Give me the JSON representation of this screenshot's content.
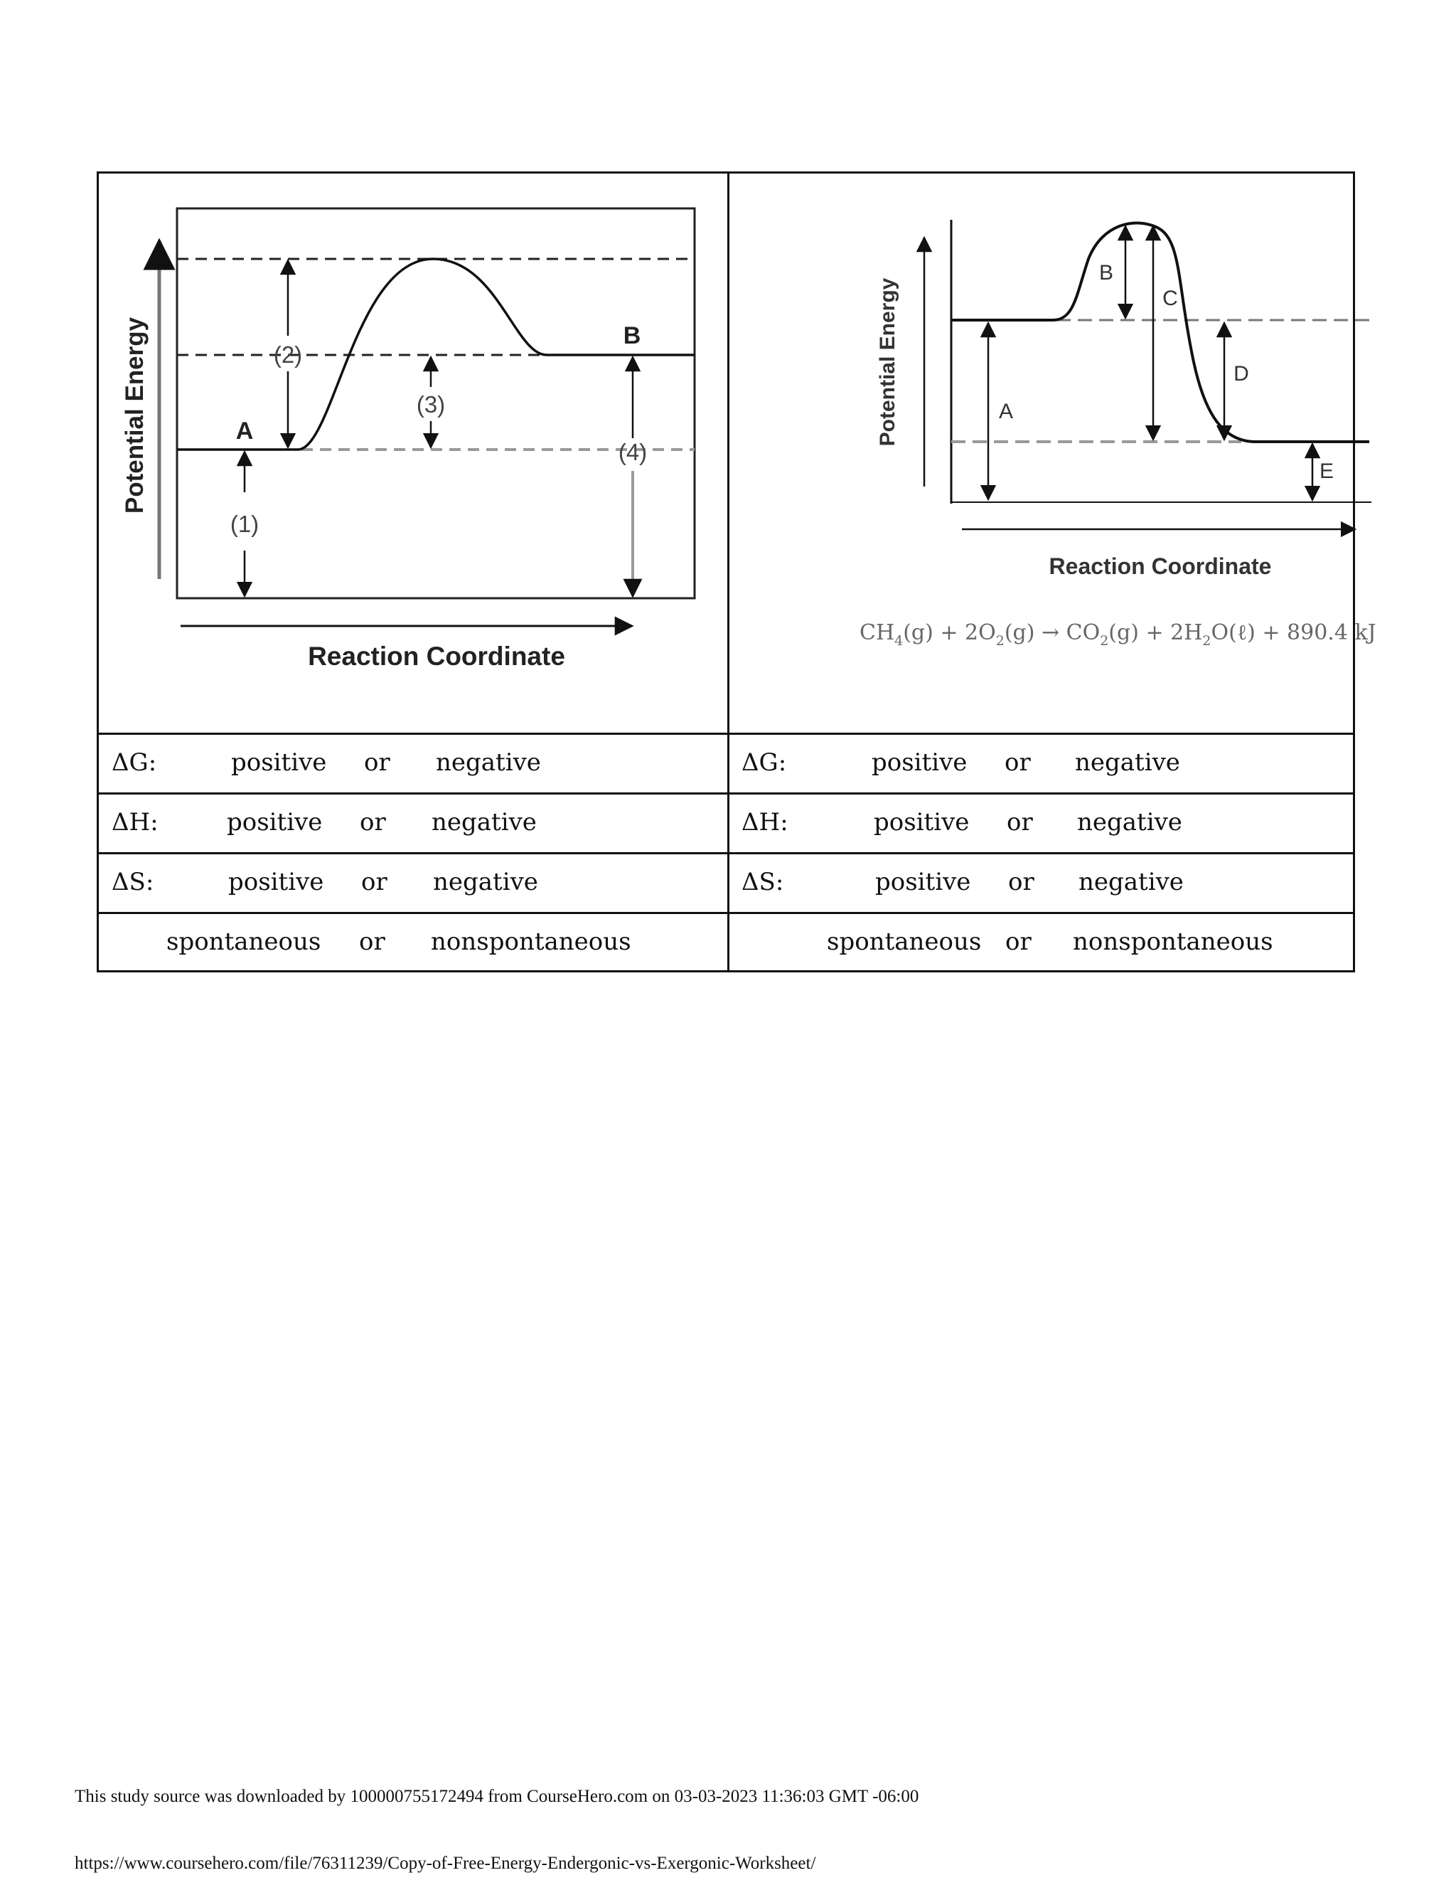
{
  "diagram1": {
    "y_axis_label": "Potential Energy",
    "x_axis_label": "Reaction Coordinate",
    "point_labels": [
      "A",
      "B"
    ],
    "arrow_labels": [
      "(1)",
      "(2)",
      "(3)",
      "(4)"
    ]
  },
  "diagram2": {
    "y_axis_label": "Potential Energy",
    "x_axis_label": "Reaction Coordinate",
    "arrow_labels": [
      "A",
      "B",
      "C",
      "D",
      "E"
    ],
    "equation": {
      "parts": [
        "CH",
        "4",
        "(g) + 2O",
        "2",
        "(g) → CO",
        "2",
        "(g) + 2H",
        "2",
        "O(ℓ) + 890.4 kJ"
      ]
    }
  },
  "rows": [
    {
      "left": {
        "label": "ΔG:",
        "opt1": "positive",
        "or": "or",
        "opt2": "negative"
      },
      "right": {
        "label": "ΔG:",
        "opt1": "positive",
        "or": "or",
        "opt2": "negative"
      }
    },
    {
      "left": {
        "label": "ΔH:",
        "opt1": "positive",
        "or": "or",
        "opt2": "negative"
      },
      "right": {
        "label": "ΔH:",
        "opt1": "positive",
        "or": "or",
        "opt2": "negative"
      }
    },
    {
      "left": {
        "label": "ΔS:",
        "opt1": "positive",
        "or": "or",
        "opt2": "negative"
      },
      "right": {
        "label": "ΔS:",
        "opt1": "positive",
        "or": "or",
        "opt2": "negative"
      }
    },
    {
      "left": {
        "opt1": "spontaneous",
        "or": "or",
        "opt2": "nonspontaneous"
      },
      "right": {
        "opt1": "spontaneous",
        "or": "or",
        "opt2": "nonspontaneous"
      }
    }
  ],
  "footer": {
    "download_note": "This study source was downloaded by 100000755172494 from CourseHero.com on 03-03-2023 11:36:03 GMT -06:00",
    "url": "https://www.coursehero.com/file/76311239/Copy-of-Free-Energy-Endergonic-vs-Exergonic-Worksheet/"
  }
}
